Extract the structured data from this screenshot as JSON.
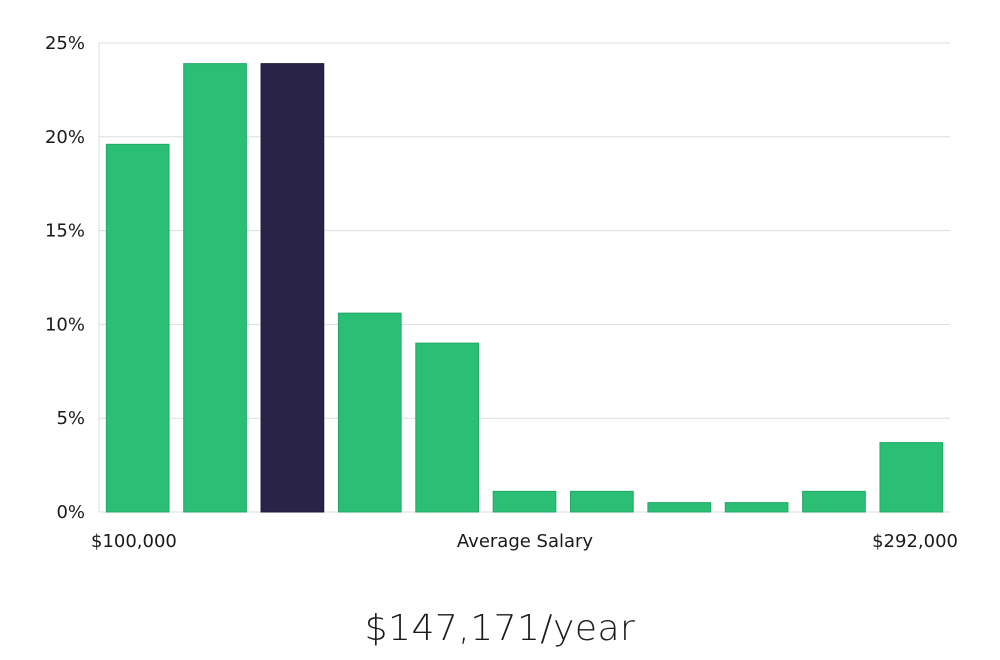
{
  "chart_data": {
    "type": "bar",
    "title": "",
    "xlabel": "Average Salary",
    "ylabel": "",
    "x_min_label": "$100,000",
    "x_max_label": "$292,000",
    "ylim": [
      0,
      25
    ],
    "y_ticks": [
      "0%",
      "5%",
      "10%",
      "15%",
      "20%",
      "25%"
    ],
    "y_tick_values": [
      0,
      5,
      10,
      15,
      20,
      25
    ],
    "grid": true,
    "values": [
      19.6,
      23.9,
      23.9,
      10.6,
      9.0,
      1.1,
      1.1,
      0.5,
      0.5,
      1.1,
      3.7
    ],
    "highlight_index": 2,
    "colors": {
      "bar": "#2abf75",
      "highlight": "#282347",
      "grid": "#dcdde3"
    }
  },
  "salary_text": "$147,171/year"
}
